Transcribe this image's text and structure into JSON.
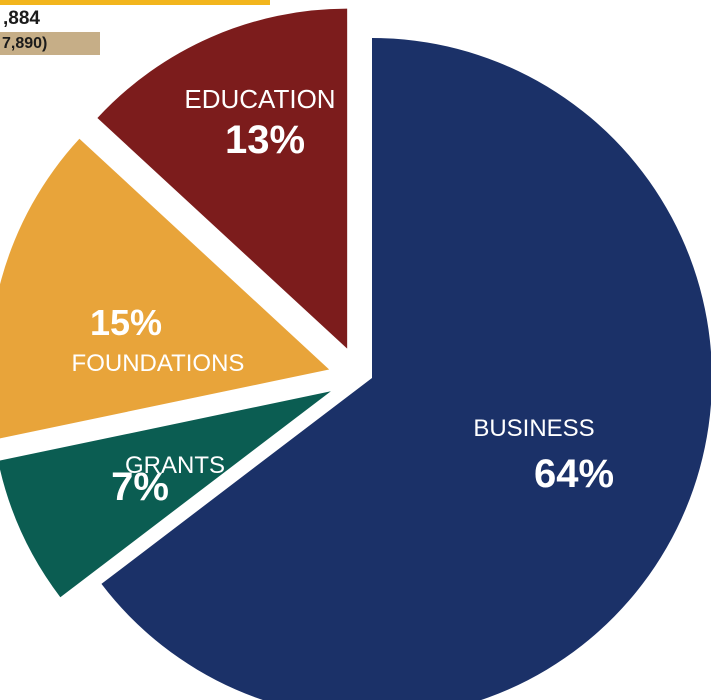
{
  "header": {
    "total_amount": ",884",
    "total_sub": "7,890)"
  },
  "chart_data": {
    "type": "pie",
    "title": "",
    "slices": [
      {
        "name": "BUSINESS",
        "value": 64,
        "value_label": "64%",
        "color": "#1b3168",
        "exploded": false
      },
      {
        "name": "GRANTS",
        "value": 7,
        "value_label": "7%",
        "color": "#0b5d52",
        "exploded": true
      },
      {
        "name": "FOUNDATIONS",
        "value": 15,
        "value_label": "15%",
        "color": "#e8a43a",
        "exploded": true
      },
      {
        "name": "EDUCATION",
        "value": 13,
        "value_label": "13%",
        "color": "#7c1c1c",
        "exploded": true
      }
    ],
    "label_color": "#ffffff"
  }
}
